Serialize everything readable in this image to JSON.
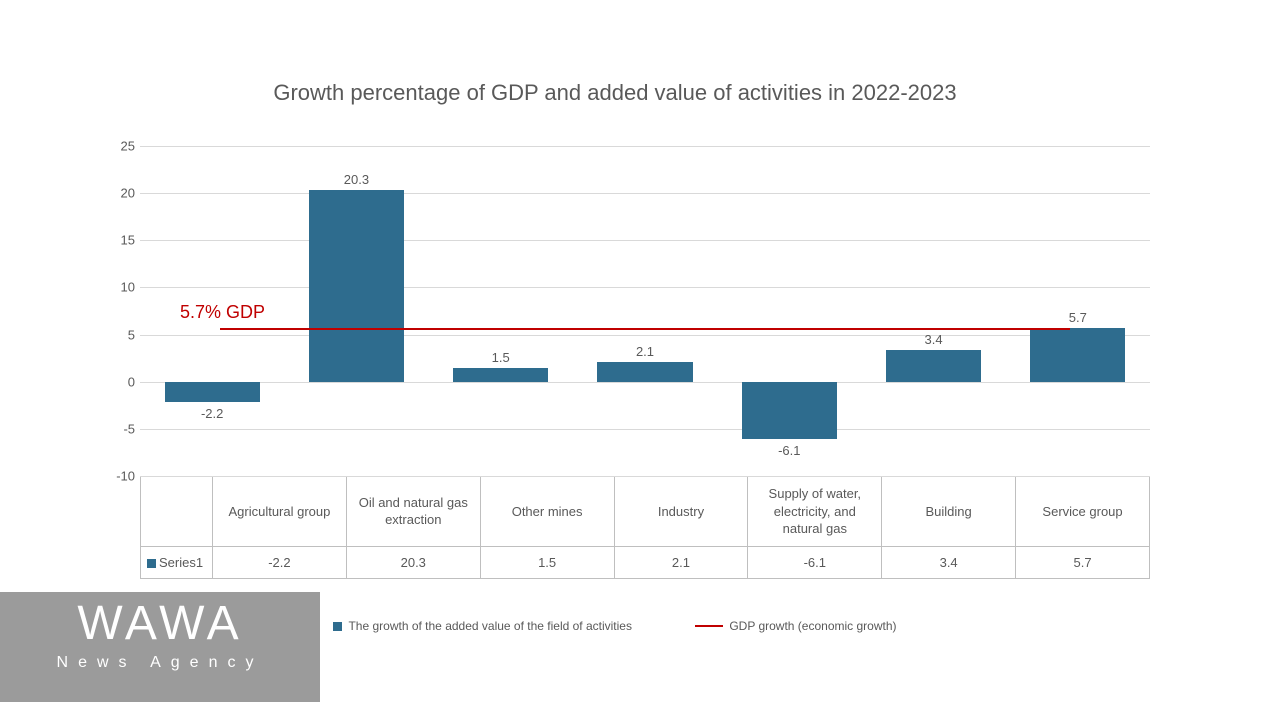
{
  "chart": {
    "type": "bar",
    "title": "Growth percentage of GDP and added value of activities in 2022-2023",
    "title_fontsize": 22,
    "title_color": "#595959",
    "categories": [
      "Agricultural group",
      "Oil and natural gas extraction",
      "Other mines",
      "Industry",
      "Supply of water, electricity, and natural gas",
      "Building",
      "Service group"
    ],
    "values": [
      -2.2,
      20.3,
      1.5,
      2.1,
      -6.1,
      3.4,
      5.7
    ],
    "value_labels": [
      "-2.2",
      "20.3",
      "1.5",
      "2.1",
      "-6.1",
      "3.4",
      "5.7"
    ],
    "bar_color": "#2e6c8e",
    "ylim": [
      -10,
      25
    ],
    "yticks": [
      -10,
      -5,
      0,
      5,
      10,
      15,
      20,
      25
    ],
    "ytick_labels": [
      "-10",
      "-5",
      "0",
      "5",
      "10",
      "15",
      "20",
      "25"
    ],
    "grid_color": "#d9d9d9",
    "background_color": "#ffffff",
    "label_fontsize": 13,
    "label_color": "#595959",
    "bar_width": 0.66,
    "gdp_line": {
      "value": 5.7,
      "color": "#c00000",
      "label": "5.7%  GDP",
      "label_fontsize": 18
    },
    "series_name": "Series1",
    "legend": {
      "bar_label": "The growth of the added value of the field of activities",
      "line_label": "GDP growth (economic growth)"
    }
  },
  "watermark": {
    "main": "WAWA",
    "sub": "News Agency",
    "bg_color": "#8a8a8a",
    "text_color": "#ffffff"
  }
}
